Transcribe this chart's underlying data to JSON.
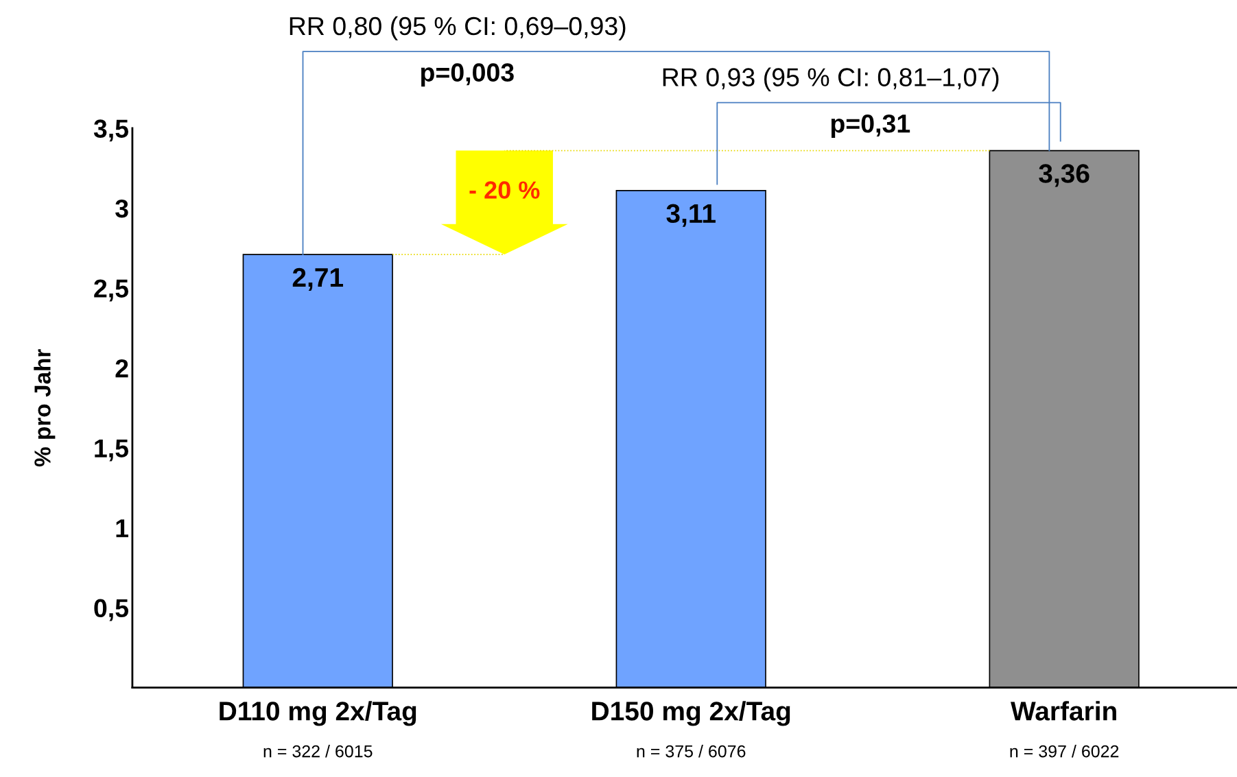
{
  "chart_data": {
    "type": "bar",
    "ylabel": "% pro Jahr",
    "categories": [
      "D110 mg 2x/Tag",
      "D150 mg 2x/Tag",
      "Warfarin"
    ],
    "values": [
      2.71,
      3.11,
      3.36
    ],
    "colors": [
      "#6fa3ff",
      "#6fa3ff",
      "#8f8f8f"
    ],
    "value_labels": [
      "2,71",
      "3,11",
      "3,36"
    ],
    "ylim": [
      0,
      3.5
    ],
    "yticks": [
      {
        "value": 0.5,
        "label": "0,5"
      },
      {
        "value": 1,
        "label": "1"
      },
      {
        "value": 1.5,
        "label": "1,5"
      },
      {
        "value": 2,
        "label": "2"
      },
      {
        "value": 2.5,
        "label": "2,5"
      },
      {
        "value": 3,
        "label": "3"
      },
      {
        "value": 3.5,
        "label": "3,5"
      }
    ],
    "grid": false,
    "legend": false,
    "ref_lines": [
      {
        "axis": "y",
        "value": 2.71,
        "color": "#e8d800",
        "line_style": "dotted"
      },
      {
        "axis": "y",
        "value": 3.36,
        "color": "#e8d800",
        "line_style": "dotted"
      }
    ],
    "annotations": [
      "n = 322 / 6015",
      "n = 375 / 6076",
      "n = 397 / 6022",
      "RR 0,80 (95 % CI: 0,69–0,93)",
      "p=0,003",
      "RR 0,93 (95 % CI: 0,81–1,07)",
      "p=0,31",
      "- 20 %"
    ]
  }
}
